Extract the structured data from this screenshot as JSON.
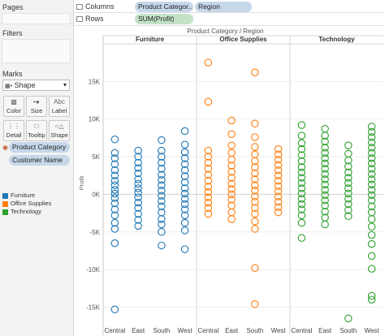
{
  "sidebar": {
    "pages_title": "Pages",
    "filters_title": "Filters",
    "marks_title": "Marks",
    "mark_type": "Shape",
    "mark_buttons": [
      {
        "label": "Color",
        "icon": "color-icon"
      },
      {
        "label": "Size",
        "icon": "size-icon"
      },
      {
        "label": "Label",
        "icon": "label-icon"
      },
      {
        "label": "Detail",
        "icon": "detail-icon"
      },
      {
        "label": "Tooltip",
        "icon": "tooltip-icon"
      },
      {
        "label": "Shape",
        "icon": "shape-icon"
      }
    ],
    "mark_fields": [
      "Product Category",
      "Customer Name"
    ],
    "legend": [
      {
        "label": "Furniture",
        "color": "#1f77b4"
      },
      {
        "label": "Office Supplies",
        "color": "#ff7f0e"
      },
      {
        "label": "Technology",
        "color": "#2ca02c"
      }
    ]
  },
  "shelves": {
    "columns_label": "Columns",
    "columns_pills": [
      "Product Categor..",
      "Region"
    ],
    "rows_label": "Rows",
    "rows_pills": [
      "SUM(Profit)"
    ]
  },
  "chart_data": {
    "type": "scatter",
    "title": "Product Category / Region",
    "panels": [
      "Furniture",
      "Office Supplies",
      "Technology"
    ],
    "categories": [
      "Central",
      "East",
      "South",
      "West"
    ],
    "ylabel": "Profit",
    "ylim": [
      -17000,
      20000
    ],
    "yticks": [
      15000,
      10000,
      5000,
      0,
      -5000,
      -10000,
      -15000
    ],
    "ytick_labels": [
      "15K",
      "10K",
      "5K",
      "0K",
      "-5K",
      "-10K",
      "-15K"
    ],
    "marker": "open-circle",
    "series": [
      {
        "panel": "Furniture",
        "color": "#1f77b4",
        "points": {
          "Central": [
            7300,
            5500,
            4800,
            4000,
            3200,
            2500,
            1800,
            1200,
            600,
            100,
            -500,
            -1200,
            -2000,
            -2800,
            -3800,
            -4600,
            -6500,
            -15300
          ],
          "East": [
            5800,
            5000,
            4200,
            3500,
            2800,
            2000,
            1400,
            800,
            200,
            -400,
            -1100,
            -1800,
            -2600,
            -3400,
            -4200
          ],
          "South": [
            7200,
            5800,
            5000,
            4200,
            3400,
            2600,
            1900,
            1200,
            500,
            -200,
            -900,
            -1600,
            -2400,
            -3300,
            -4000,
            -5000,
            -6800
          ],
          "West": [
            8400,
            6600,
            5600,
            4800,
            4000,
            3200,
            2400,
            1600,
            800,
            100,
            -600,
            -1300,
            -2000,
            -2800,
            -3800,
            -4800,
            -7300
          ]
        }
      },
      {
        "panel": "Office Supplies",
        "color": "#ff7f0e",
        "points": {
          "Central": [
            17500,
            12300,
            5800,
            5000,
            4200,
            3400,
            2600,
            1800,
            1000,
            300,
            -400,
            -1100,
            -1800,
            -2600
          ],
          "East": [
            9800,
            8000,
            6500,
            5500,
            4600,
            3800,
            3000,
            2200,
            1400,
            700,
            0,
            -700,
            -1500,
            -2400,
            -3300
          ],
          "South": [
            16200,
            9400,
            7600,
            6300,
            5300,
            4400,
            3600,
            2800,
            2000,
            1200,
            500,
            -300,
            -1000,
            -1800,
            -2600,
            -3600,
            -4600,
            -9800,
            -14600
          ],
          "West": [
            6000,
            5300,
            4600,
            3900,
            3200,
            2500,
            1800,
            1100,
            400,
            -300,
            -1000,
            -1700,
            -2400
          ]
        }
      },
      {
        "panel": "Technology",
        "color": "#2ca02c",
        "points": {
          "Central": [
            9200,
            7800,
            6800,
            6000,
            5200,
            4400,
            3600,
            2900,
            2200,
            1500,
            800,
            100,
            -600,
            -1300,
            -2000,
            -2800,
            -3800,
            -5800
          ],
          "East": [
            8700,
            7800,
            7000,
            6200,
            5500,
            4800,
            4100,
            3400,
            2700,
            2000,
            1300,
            600,
            -100,
            -800,
            -1500,
            -2300,
            -3100,
            -4000
          ],
          "South": [
            6500,
            5400,
            4500,
            3700,
            2900,
            2200,
            1500,
            800,
            100,
            -600,
            -1300,
            -2100,
            -2900,
            -16500
          ],
          "West": [
            9000,
            8300,
            7600,
            6900,
            6200,
            5500,
            4800,
            4100,
            3400,
            2700,
            2000,
            1300,
            600,
            -100,
            -800,
            -1600,
            -2400,
            -3300,
            -4300,
            -5400,
            -6600,
            -8200,
            -9900,
            -13500,
            -14000
          ]
        }
      }
    ]
  }
}
